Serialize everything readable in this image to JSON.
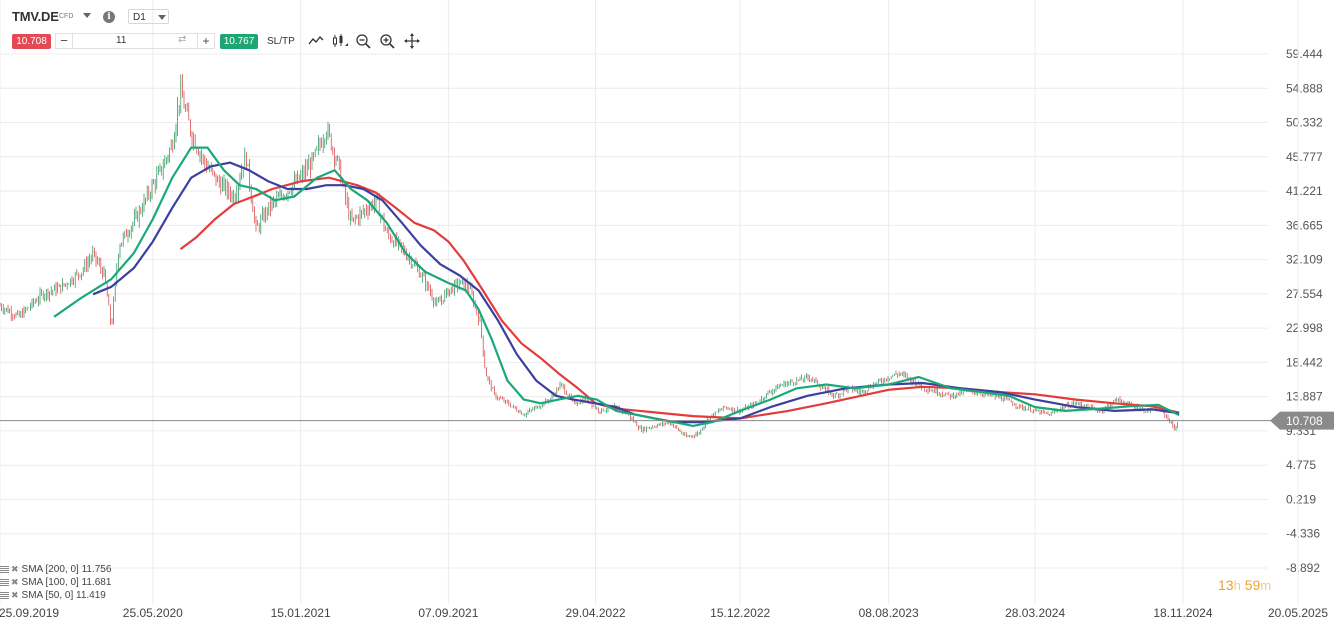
{
  "toolbar": {
    "symbol": "TMV.DE",
    "symbol_type": "CFD",
    "timeframe": "D1",
    "sell_price": "10.708",
    "buy_price": "10.767",
    "quantity": "11",
    "minus_label": "−",
    "plus_label": "+",
    "sltp_label": "SL/TP",
    "icons": [
      "line-type-icon",
      "candle-type-icon",
      "zoom-out-icon",
      "zoom-in-icon",
      "crosshair-icon"
    ]
  },
  "colors": {
    "sma50": "#1aa87a",
    "sma100": "#3b3fa0",
    "sma200": "#e23c3c",
    "candle_up": "#1e8c52",
    "candle_down": "#d23b3b",
    "price_badge": "#8a8a8a",
    "timer": "#f0a030"
  },
  "legend": [
    {
      "label": "SMA [200, 0] 11.756"
    },
    {
      "label": "SMA [100, 0] 11.681"
    },
    {
      "label": "SMA [50, 0] 11.419"
    }
  ],
  "timer": {
    "hours": "13",
    "h_unit": "h",
    "minutes": "59",
    "m_unit": "m"
  },
  "chart_data": {
    "type": "line",
    "title": "",
    "price_type": "candlestick",
    "current_price": 10.708,
    "current_price_label": "10.708",
    "y_ticks": [
      "59.444",
      "54.888",
      "50.332",
      "45.777",
      "41.221",
      "36.665",
      "32.109",
      "27.554",
      "22.998",
      "18.442",
      "13.887",
      "9.331",
      "4.775",
      "0.219",
      "-4.336",
      "-8.892"
    ],
    "ylim": [
      -8.892,
      59.444
    ],
    "x_ticks": [
      "25.09.2019",
      "25.05.2020",
      "15.01.2021",
      "07.09.2021",
      "29.04.2022",
      "15.12.2022",
      "08.08.2023",
      "28.03.2024",
      "18.11.2024",
      "20.05.2025"
    ],
    "grid": true,
    "legend_position": "bottom-left",
    "price_path": [
      [
        "2019-09-25",
        26.0
      ],
      [
        "2019-10-25",
        24.5
      ],
      [
        "2019-12-01",
        27.5
      ],
      [
        "2020-01-01",
        28.5
      ],
      [
        "2020-02-01",
        30.5
      ],
      [
        "2020-02-20",
        32.8
      ],
      [
        "2020-03-09",
        30.0
      ],
      [
        "2020-03-20",
        23.0
      ],
      [
        "2020-04-01",
        34.0
      ],
      [
        "2020-05-01",
        38.0
      ],
      [
        "2020-05-25",
        42.0
      ],
      [
        "2020-06-10",
        44.5
      ],
      [
        "2020-06-25",
        47.5
      ],
      [
        "2020-07-08",
        54.5
      ],
      [
        "2020-07-25",
        49.0
      ],
      [
        "2020-08-15",
        45.0
      ],
      [
        "2020-09-05",
        42.5
      ],
      [
        "2020-10-01",
        40.5
      ],
      [
        "2020-10-20",
        46.0
      ],
      [
        "2020-11-05",
        36.0
      ],
      [
        "2020-11-25",
        39.0
      ],
      [
        "2020-12-15",
        40.5
      ],
      [
        "2021-01-15",
        43.0
      ],
      [
        "2021-02-05",
        45.5
      ],
      [
        "2021-02-25",
        49.5
      ],
      [
        "2021-03-15",
        45.0
      ],
      [
        "2021-04-05",
        37.0
      ],
      [
        "2021-04-25",
        38.5
      ],
      [
        "2021-05-15",
        40.0
      ],
      [
        "2021-06-01",
        35.5
      ],
      [
        "2021-06-20",
        34.0
      ],
      [
        "2021-07-10",
        32.0
      ],
      [
        "2021-07-30",
        29.5
      ],
      [
        "2021-08-20",
        26.0
      ],
      [
        "2021-09-07",
        28.0
      ],
      [
        "2021-09-25",
        29.0
      ],
      [
        "2021-10-10",
        28.5
      ],
      [
        "2021-10-28",
        23.5
      ],
      [
        "2021-11-05",
        17.0
      ],
      [
        "2021-11-20",
        14.0
      ],
      [
        "2021-12-10",
        13.0
      ],
      [
        "2022-01-05",
        11.5
      ],
      [
        "2022-01-25",
        12.5
      ],
      [
        "2022-02-15",
        13.5
      ],
      [
        "2022-03-05",
        15.5
      ],
      [
        "2022-03-25",
        13.0
      ],
      [
        "2022-04-15",
        13.5
      ],
      [
        "2022-05-05",
        12.0
      ],
      [
        "2022-05-30",
        12.5
      ],
      [
        "2022-06-20",
        11.5
      ],
      [
        "2022-07-10",
        9.5
      ],
      [
        "2022-08-01",
        10.0
      ],
      [
        "2022-08-25",
        10.5
      ],
      [
        "2022-09-20",
        8.5
      ],
      [
        "2022-10-10",
        9.0
      ],
      [
        "2022-10-25",
        11.0
      ],
      [
        "2022-11-20",
        12.5
      ],
      [
        "2022-12-15",
        12.0
      ],
      [
        "2023-01-10",
        13.0
      ],
      [
        "2023-01-30",
        14.5
      ],
      [
        "2023-02-20",
        15.5
      ],
      [
        "2023-03-15",
        16.0
      ],
      [
        "2023-04-05",
        16.5
      ],
      [
        "2023-04-25",
        15.0
      ],
      [
        "2023-05-15",
        14.0
      ],
      [
        "2023-06-05",
        15.0
      ],
      [
        "2023-06-25",
        14.5
      ],
      [
        "2023-07-15",
        15.5
      ],
      [
        "2023-08-08",
        16.5
      ],
      [
        "2023-08-25",
        17.0
      ],
      [
        "2023-09-15",
        16.0
      ],
      [
        "2023-10-05",
        15.0
      ],
      [
        "2023-10-25",
        14.5
      ],
      [
        "2023-11-15",
        14.0
      ],
      [
        "2023-12-05",
        14.5
      ],
      [
        "2023-12-28",
        14.5
      ],
      [
        "2024-01-20",
        14.0
      ],
      [
        "2024-02-10",
        13.5
      ],
      [
        "2024-03-05",
        12.5
      ],
      [
        "2024-03-28",
        12.0
      ],
      [
        "2024-04-20",
        11.5
      ],
      [
        "2024-05-10",
        12.5
      ],
      [
        "2024-06-01",
        13.0
      ],
      [
        "2024-06-20",
        12.5
      ],
      [
        "2024-07-10",
        12.0
      ],
      [
        "2024-08-05",
        13.5
      ],
      [
        "2024-08-25",
        12.8
      ],
      [
        "2024-09-20",
        12.0
      ],
      [
        "2024-10-10",
        12.5
      ],
      [
        "2024-10-25",
        11.0
      ],
      [
        "2024-11-05",
        9.6
      ],
      [
        "2024-11-12",
        10.7
      ]
    ],
    "series": [
      {
        "name": "SMA [50, 0]",
        "last": 11.419,
        "points": [
          [
            "2019-12-20",
            24.5
          ],
          [
            "2020-02-01",
            27.0
          ],
          [
            "2020-03-20",
            29.5
          ],
          [
            "2020-04-25",
            33.0
          ],
          [
            "2020-05-25",
            37.5
          ],
          [
            "2020-06-25",
            43.0
          ],
          [
            "2020-07-25",
            47.0
          ],
          [
            "2020-08-20",
            47.0
          ],
          [
            "2020-09-15",
            44.0
          ],
          [
            "2020-10-10",
            42.0
          ],
          [
            "2020-11-05",
            41.5
          ],
          [
            "2020-12-05",
            40.0
          ],
          [
            "2021-01-05",
            40.5
          ],
          [
            "2021-02-10",
            43.0
          ],
          [
            "2021-03-10",
            44.0
          ],
          [
            "2021-04-05",
            41.5
          ],
          [
            "2021-05-01",
            40.0
          ],
          [
            "2021-06-01",
            37.0
          ],
          [
            "2021-07-01",
            33.0
          ],
          [
            "2021-08-01",
            30.5
          ],
          [
            "2021-09-07",
            29.0
          ],
          [
            "2021-10-05",
            28.0
          ],
          [
            "2021-10-25",
            25.5
          ],
          [
            "2021-11-15",
            21.5
          ],
          [
            "2021-12-10",
            16.0
          ],
          [
            "2022-01-05",
            13.5
          ],
          [
            "2022-02-01",
            13.0
          ],
          [
            "2022-03-01",
            13.5
          ],
          [
            "2022-04-01",
            14.0
          ],
          [
            "2022-05-01",
            13.5
          ],
          [
            "2022-06-01",
            12.0
          ],
          [
            "2022-07-01",
            11.5
          ],
          [
            "2022-08-01",
            11.0
          ],
          [
            "2022-09-01",
            10.5
          ],
          [
            "2022-10-01",
            10.0
          ],
          [
            "2022-11-01",
            10.5
          ],
          [
            "2022-12-15",
            12.0
          ],
          [
            "2023-02-01",
            13.5
          ],
          [
            "2023-03-15",
            15.0
          ],
          [
            "2023-05-01",
            15.5
          ],
          [
            "2023-06-15",
            15.0
          ],
          [
            "2023-08-08",
            15.5
          ],
          [
            "2023-09-25",
            16.5
          ],
          [
            "2023-11-15",
            15.0
          ],
          [
            "2024-01-05",
            14.5
          ],
          [
            "2024-02-15",
            14.0
          ],
          [
            "2024-03-28",
            12.5
          ],
          [
            "2024-05-15",
            12.0
          ],
          [
            "2024-07-10",
            12.3
          ],
          [
            "2024-08-25",
            12.6
          ],
          [
            "2024-10-10",
            12.8
          ],
          [
            "2024-11-12",
            11.419
          ]
        ]
      },
      {
        "name": "SMA [100, 0]",
        "last": 11.681,
        "points": [
          [
            "2020-02-20",
            27.5
          ],
          [
            "2020-03-20",
            28.5
          ],
          [
            "2020-04-25",
            31.0
          ],
          [
            "2020-05-25",
            34.5
          ],
          [
            "2020-06-25",
            39.0
          ],
          [
            "2020-07-25",
            43.0
          ],
          [
            "2020-08-25",
            44.5
          ],
          [
            "2020-09-25",
            45.0
          ],
          [
            "2020-10-25",
            44.0
          ],
          [
            "2020-11-25",
            42.5
          ],
          [
            "2020-12-25",
            41.5
          ],
          [
            "2021-01-25",
            41.5
          ],
          [
            "2021-02-25",
            42.0
          ],
          [
            "2021-03-25",
            42.0
          ],
          [
            "2021-04-25",
            41.5
          ],
          [
            "2021-05-25",
            40.0
          ],
          [
            "2021-06-25",
            37.0
          ],
          [
            "2021-07-25",
            34.0
          ],
          [
            "2021-08-25",
            31.5
          ],
          [
            "2021-09-25",
            30.0
          ],
          [
            "2021-10-25",
            28.0
          ],
          [
            "2021-11-25",
            24.0
          ],
          [
            "2021-12-25",
            19.5
          ],
          [
            "2022-01-25",
            16.0
          ],
          [
            "2022-02-25",
            14.0
          ],
          [
            "2022-03-25",
            13.5
          ],
          [
            "2022-04-29",
            13.0
          ],
          [
            "2022-06-01",
            12.5
          ],
          [
            "2022-07-01",
            11.5
          ],
          [
            "2022-08-01",
            11.0
          ],
          [
            "2022-09-01",
            10.5
          ],
          [
            "2022-10-15",
            10.5
          ],
          [
            "2022-12-15",
            11.0
          ],
          [
            "2023-02-01",
            12.5
          ],
          [
            "2023-04-01",
            14.0
          ],
          [
            "2023-06-01",
            15.0
          ],
          [
            "2023-08-08",
            15.5
          ],
          [
            "2023-10-01",
            15.7
          ],
          [
            "2023-12-01",
            15.0
          ],
          [
            "2024-02-01",
            14.5
          ],
          [
            "2024-03-28",
            13.5
          ],
          [
            "2024-06-01",
            12.5
          ],
          [
            "2024-08-01",
            12.0
          ],
          [
            "2024-10-01",
            12.2
          ],
          [
            "2024-11-12",
            11.681
          ]
        ]
      },
      {
        "name": "SMA [200, 0]",
        "last": 11.756,
        "points": [
          [
            "2020-07-08",
            33.5
          ],
          [
            "2020-08-01",
            35.0
          ],
          [
            "2020-09-01",
            37.5
          ],
          [
            "2020-10-01",
            39.5
          ],
          [
            "2020-11-01",
            40.5
          ],
          [
            "2020-12-01",
            41.5
          ],
          [
            "2021-01-15",
            42.5
          ],
          [
            "2021-03-01",
            43.0
          ],
          [
            "2021-04-15",
            42.0
          ],
          [
            "2021-05-15",
            41.0
          ],
          [
            "2021-06-15",
            39.0
          ],
          [
            "2021-07-15",
            37.0
          ],
          [
            "2021-08-15",
            36.0
          ],
          [
            "2021-09-07",
            34.5
          ],
          [
            "2021-10-01",
            32.0
          ],
          [
            "2021-11-01",
            28.0
          ],
          [
            "2021-12-01",
            24.0
          ],
          [
            "2022-01-01",
            21.0
          ],
          [
            "2022-02-01",
            19.0
          ],
          [
            "2022-03-01",
            17.0
          ],
          [
            "2022-04-01",
            15.0
          ],
          [
            "2022-04-29",
            13.0
          ],
          [
            "2022-06-01",
            12.3
          ],
          [
            "2022-08-01",
            11.8
          ],
          [
            "2022-10-01",
            11.3
          ],
          [
            "2022-12-15",
            11.0
          ],
          [
            "2023-03-01",
            12.0
          ],
          [
            "2023-05-01",
            13.0
          ],
          [
            "2023-08-08",
            14.8
          ],
          [
            "2023-10-01",
            15.2
          ],
          [
            "2023-12-01",
            15.0
          ],
          [
            "2024-02-01",
            14.5
          ],
          [
            "2024-03-28",
            14.2
          ],
          [
            "2024-06-01",
            13.5
          ],
          [
            "2024-08-01",
            13.0
          ],
          [
            "2024-10-01",
            12.6
          ],
          [
            "2024-11-12",
            11.756
          ]
        ]
      }
    ]
  }
}
